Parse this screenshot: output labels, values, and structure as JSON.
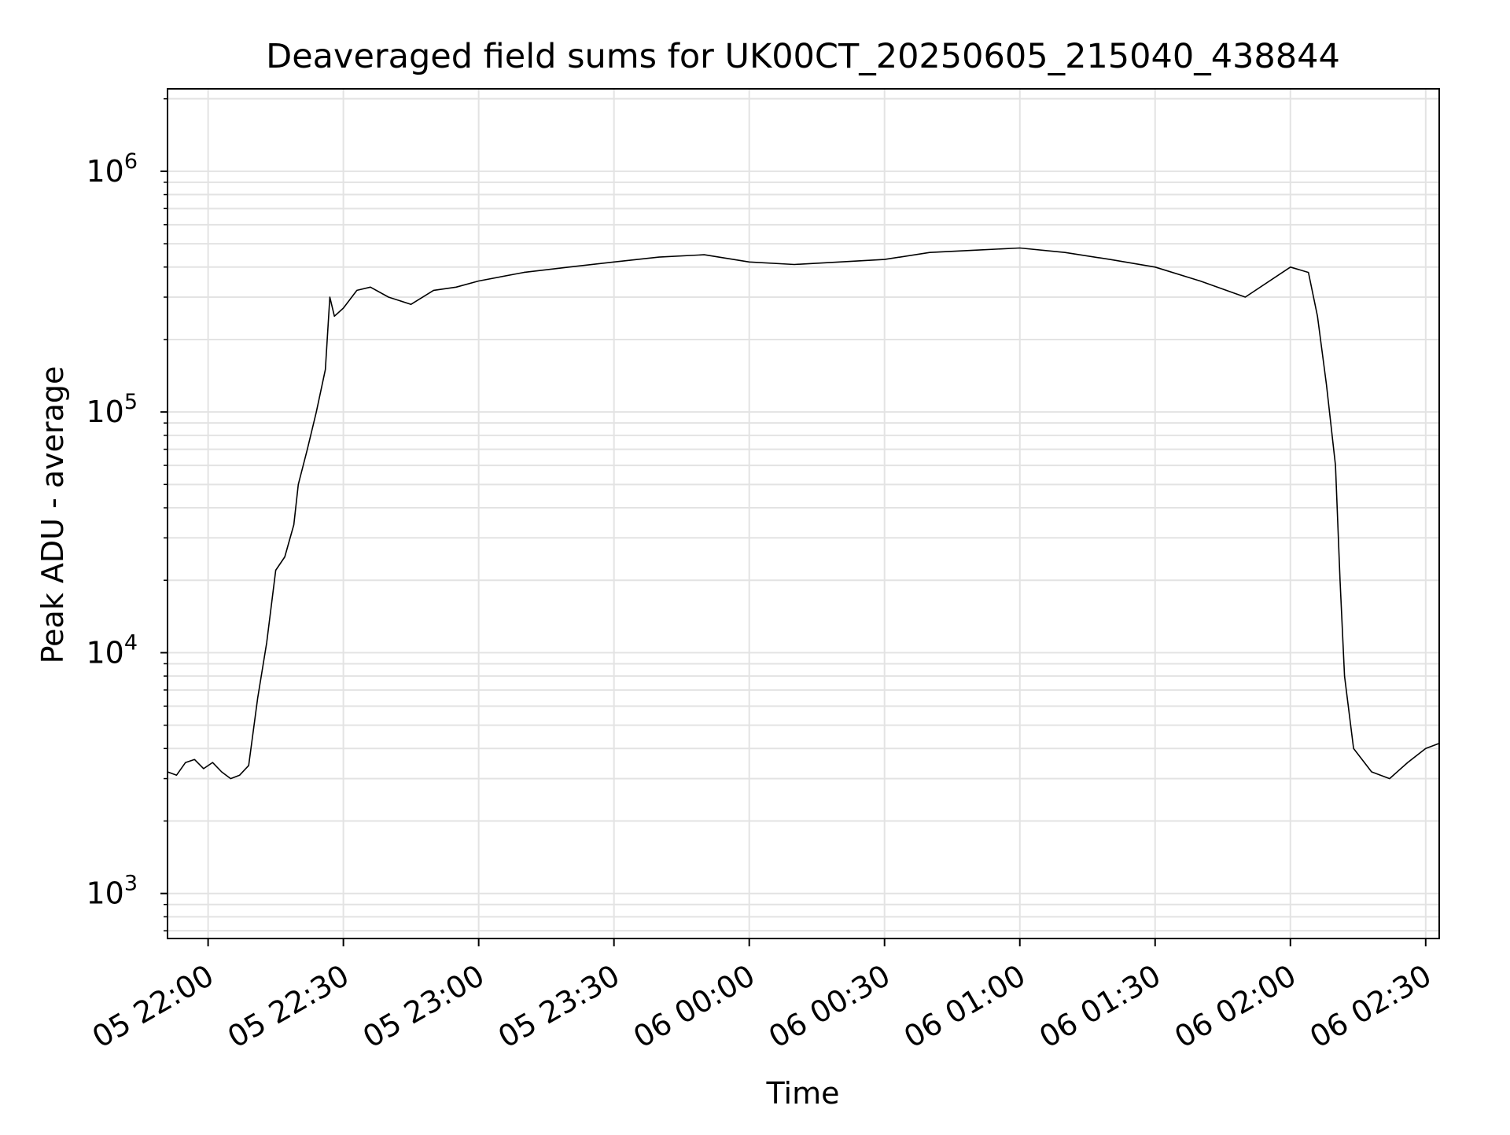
{
  "chart_data": {
    "type": "line",
    "title": "Deaveraged field sums for UK00CT_20250605_215040_438844",
    "xlabel": "Time",
    "ylabel": "Peak ADU - average",
    "yscale": "log",
    "ylim": [
      650,
      2200000
    ],
    "xlim": [
      "2025-06-05 21:51",
      "2025-06-06 02:33"
    ],
    "grid": true,
    "line_color": "#000000",
    "grid_color": "#e3e3e3",
    "x_ticks": [
      {
        "t": "2025-06-05 22:00",
        "label": "05 22:00"
      },
      {
        "t": "2025-06-05 22:30",
        "label": "05 22:30"
      },
      {
        "t": "2025-06-05 23:00",
        "label": "05 23:00"
      },
      {
        "t": "2025-06-05 23:30",
        "label": "05 23:30"
      },
      {
        "t": "2025-06-06 00:00",
        "label": "06 00:00"
      },
      {
        "t": "2025-06-06 00:30",
        "label": "06 00:30"
      },
      {
        "t": "2025-06-06 01:00",
        "label": "06 01:00"
      },
      {
        "t": "2025-06-06 01:30",
        "label": "06 01:30"
      },
      {
        "t": "2025-06-06 02:00",
        "label": "06 02:00"
      },
      {
        "t": "2025-06-06 02:30",
        "label": "06 02:30"
      }
    ],
    "y_ticks": [
      {
        "value": 1000,
        "label": "10",
        "exp": "3"
      },
      {
        "value": 10000,
        "label": "10",
        "exp": "4"
      },
      {
        "value": 100000,
        "label": "10",
        "exp": "5"
      },
      {
        "value": 1000000,
        "label": "10",
        "exp": "6"
      }
    ],
    "series": [
      {
        "x": [
          "2025-06-05 21:51",
          "2025-06-05 21:53",
          "2025-06-05 21:55",
          "2025-06-05 21:57",
          "2025-06-05 21:59",
          "2025-06-05 22:01",
          "2025-06-05 22:03",
          "2025-06-05 22:05",
          "2025-06-05 22:07",
          "2025-06-05 22:09",
          "2025-06-05 22:11",
          "2025-06-05 22:13",
          "2025-06-05 22:15",
          "2025-06-05 22:17",
          "2025-06-05 22:19",
          "2025-06-05 22:20",
          "2025-06-05 22:22",
          "2025-06-05 22:24",
          "2025-06-05 22:26",
          "2025-06-05 22:27",
          "2025-06-05 22:28",
          "2025-06-05 22:30",
          "2025-06-05 22:33",
          "2025-06-05 22:36",
          "2025-06-05 22:40",
          "2025-06-05 22:45",
          "2025-06-05 22:50",
          "2025-06-05 22:55",
          "2025-06-05 23:00",
          "2025-06-05 23:10",
          "2025-06-05 23:20",
          "2025-06-05 23:30",
          "2025-06-05 23:40",
          "2025-06-05 23:50",
          "2025-06-06 00:00",
          "2025-06-06 00:10",
          "2025-06-06 00:20",
          "2025-06-06 00:30",
          "2025-06-06 00:40",
          "2025-06-06 00:50",
          "2025-06-06 01:00",
          "2025-06-06 01:10",
          "2025-06-06 01:20",
          "2025-06-06 01:30",
          "2025-06-06 01:40",
          "2025-06-06 01:50",
          "2025-06-06 02:00",
          "2025-06-06 02:04",
          "2025-06-06 02:06",
          "2025-06-06 02:08",
          "2025-06-06 02:10",
          "2025-06-06 02:11",
          "2025-06-06 02:12",
          "2025-06-06 02:14",
          "2025-06-06 02:18",
          "2025-06-06 02:22",
          "2025-06-06 02:26",
          "2025-06-06 02:30",
          "2025-06-06 02:33"
        ],
        "y": [
          3200,
          3100,
          3500,
          3600,
          3300,
          3500,
          3200,
          3000,
          3100,
          3400,
          6500,
          11000,
          22000,
          25000,
          34000,
          50000,
          70000,
          100000,
          150000,
          300000,
          250000,
          270000,
          320000,
          330000,
          300000,
          280000,
          320000,
          330000,
          350000,
          380000,
          400000,
          420000,
          440000,
          450000,
          420000,
          410000,
          420000,
          430000,
          460000,
          470000,
          480000,
          460000,
          430000,
          400000,
          350000,
          300000,
          400000,
          380000,
          250000,
          130000,
          60000,
          20000,
          8000,
          4000,
          3200,
          3000,
          3500,
          4000,
          4200
        ]
      }
    ]
  }
}
